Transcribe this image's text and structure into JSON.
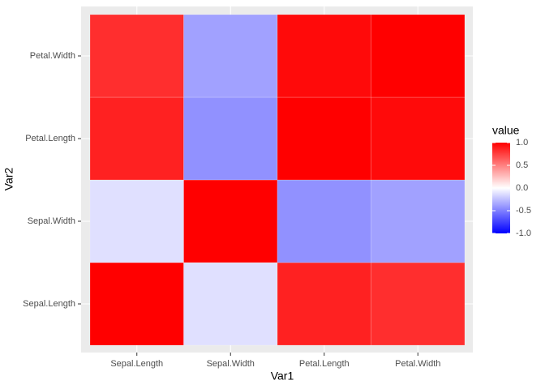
{
  "chart_data": {
    "type": "heatmap",
    "x_label": "Var1",
    "y_label": "Var2",
    "x_categories": [
      "Sepal.Length",
      "Sepal.Width",
      "Petal.Length",
      "Petal.Width"
    ],
    "y_categories": [
      "Sepal.Length",
      "Sepal.Width",
      "Petal.Length",
      "Petal.Width"
    ],
    "values": [
      [
        1,
        -0.12,
        0.87,
        0.82
      ],
      [
        -0.12,
        1,
        -0.43,
        -0.37
      ],
      [
        0.87,
        -0.43,
        1,
        0.96
      ],
      [
        0.82,
        -0.37,
        0.96,
        1
      ]
    ],
    "legend_title": "value",
    "colors": {
      "low": "#0000ff",
      "mid": "#ffffff",
      "high": "#ff0000"
    },
    "clim": [
      -1,
      1
    ],
    "cticks": [
      {
        "value": -1,
        "label": "-1.0"
      },
      {
        "value": -0.5,
        "label": "-0.5"
      },
      {
        "value": 0,
        "label": "0.0"
      },
      {
        "value": 0.5,
        "label": "0.5"
      },
      {
        "value": 1,
        "label": "1.0"
      }
    ],
    "grid": true
  }
}
